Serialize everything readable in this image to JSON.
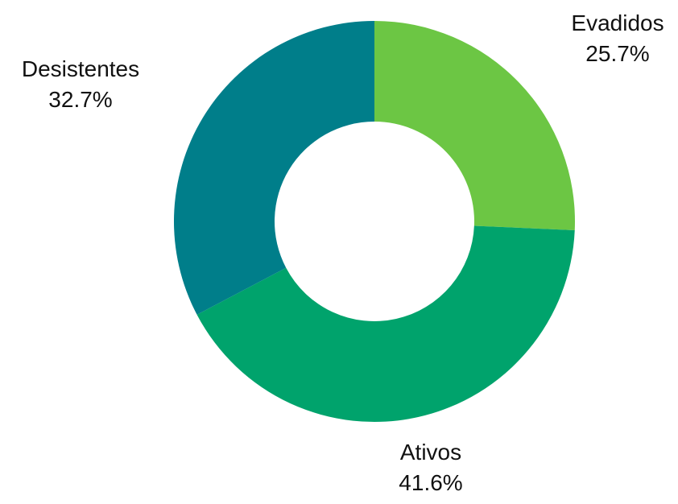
{
  "chart_data": {
    "type": "pie",
    "style": "donut",
    "slices": [
      {
        "label": "Evadidos",
        "value": 25.7,
        "display": "25.7%",
        "color": "#6cc644"
      },
      {
        "label": "Ativos",
        "value": 41.6,
        "display": "41.6%",
        "color": "#00a36c"
      },
      {
        "label": "Desistentes",
        "value": 32.7,
        "display": "32.7%",
        "color": "#007e8a"
      }
    ],
    "title": "",
    "legend": "none"
  }
}
